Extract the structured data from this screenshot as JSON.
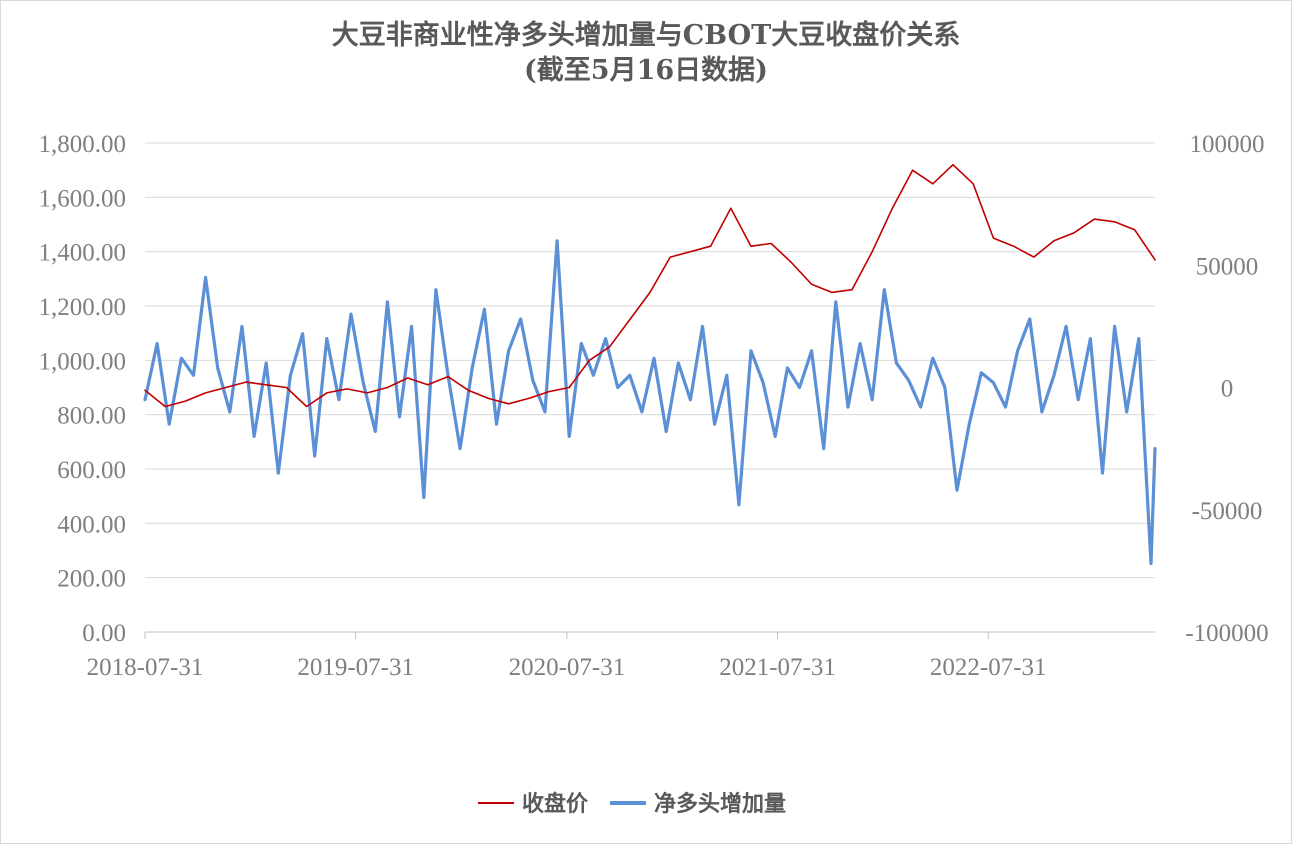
{
  "chart_data": {
    "type": "line",
    "title": "大豆非商业性净多头增加量与CBOT大豆收盘价关系",
    "subtitle": "(截至5月16日数据)",
    "x_tick_labels": [
      "2018-07-31",
      "2019-07-31",
      "2020-07-31",
      "2021-07-31",
      "2022-07-31"
    ],
    "x_range": [
      "2018-07-31",
      "2023-05-16"
    ],
    "y_left": {
      "range": [
        0,
        1800
      ],
      "ticks": [
        0,
        200,
        400,
        600,
        800,
        1000,
        1200,
        1400,
        1600,
        1800
      ],
      "tick_labels": [
        "0.00",
        "200.00",
        "400.00",
        "600.00",
        "800.00",
        "1,000.00",
        "1,200.00",
        "1,400.00",
        "1,600.00",
        "1,800.00"
      ]
    },
    "y_right": {
      "range": [
        -100000,
        100000
      ],
      "ticks": [
        -100000,
        -50000,
        0,
        50000,
        100000
      ],
      "tick_labels": [
        "-100000",
        "-50000",
        "0",
        "50000",
        "100000"
      ]
    },
    "grid": "horizontal",
    "legend_position": "bottom",
    "series": [
      {
        "name": "收盘价",
        "axis": "left",
        "color": "#c00000",
        "x": [
          "2018-07-31",
          "2018-09-04",
          "2018-10-09",
          "2018-11-13",
          "2018-12-18",
          "2019-01-22",
          "2019-02-26",
          "2019-04-02",
          "2019-05-07",
          "2019-06-11",
          "2019-07-16",
          "2019-08-20",
          "2019-09-24",
          "2019-10-29",
          "2019-12-03",
          "2020-01-07",
          "2020-02-11",
          "2020-03-17",
          "2020-04-21",
          "2020-05-26",
          "2020-06-30",
          "2020-08-04",
          "2020-09-08",
          "2020-10-13",
          "2020-11-17",
          "2020-12-22",
          "2021-01-26",
          "2021-03-02",
          "2021-04-06",
          "2021-05-11",
          "2021-06-15",
          "2021-07-20",
          "2021-08-24",
          "2021-09-28",
          "2021-11-02",
          "2021-12-07",
          "2022-01-11",
          "2022-02-15",
          "2022-03-22",
          "2022-04-26",
          "2022-05-31",
          "2022-07-05",
          "2022-08-09",
          "2022-09-13",
          "2022-10-18",
          "2022-11-22",
          "2022-12-27",
          "2023-01-31",
          "2023-03-07",
          "2023-04-11",
          "2023-05-16"
        ],
        "values": [
          890,
          830,
          850,
          880,
          900,
          920,
          910,
          900,
          830,
          880,
          895,
          880,
          900,
          935,
          910,
          940,
          890,
          860,
          840,
          860,
          885,
          900,
          1000,
          1050,
          1150,
          1250,
          1380,
          1400,
          1420,
          1560,
          1420,
          1430,
          1360,
          1280,
          1250,
          1260,
          1400,
          1560,
          1700,
          1650,
          1720,
          1650,
          1450,
          1420,
          1380,
          1440,
          1470,
          1520,
          1510,
          1480,
          1370
        ]
      },
      {
        "name": "净多头增加量",
        "axis": "right",
        "color": "#5b8fd6",
        "x": [
          "2018-07-31",
          "2018-08-21",
          "2018-09-11",
          "2018-10-02",
          "2018-10-23",
          "2018-11-13",
          "2018-12-04",
          "2018-12-25",
          "2019-01-15",
          "2019-02-05",
          "2019-02-26",
          "2019-03-19",
          "2019-04-09",
          "2019-04-30",
          "2019-05-21",
          "2019-06-11",
          "2019-07-02",
          "2019-07-23",
          "2019-08-13",
          "2019-09-03",
          "2019-09-24",
          "2019-10-15",
          "2019-11-05",
          "2019-11-26",
          "2019-12-17",
          "2020-01-07",
          "2020-01-28",
          "2020-02-18",
          "2020-03-10",
          "2020-03-31",
          "2020-04-21",
          "2020-05-12",
          "2020-06-02",
          "2020-06-23",
          "2020-07-14",
          "2020-08-04",
          "2020-08-25",
          "2020-09-15",
          "2020-10-06",
          "2020-10-27",
          "2020-11-17",
          "2020-12-08",
          "2020-12-29",
          "2021-01-19",
          "2021-02-09",
          "2021-03-02",
          "2021-03-23",
          "2021-04-13",
          "2021-05-04",
          "2021-05-25",
          "2021-06-15",
          "2021-07-06",
          "2021-07-27",
          "2021-08-17",
          "2021-09-07",
          "2021-09-28",
          "2021-10-19",
          "2021-11-09",
          "2021-11-30",
          "2021-12-21",
          "2022-01-11",
          "2022-02-01",
          "2022-02-22",
          "2022-03-15",
          "2022-04-05",
          "2022-04-26",
          "2022-05-17",
          "2022-06-07",
          "2022-06-28",
          "2022-07-19",
          "2022-08-09",
          "2022-08-30",
          "2022-09-20",
          "2022-10-11",
          "2022-11-01",
          "2022-11-22",
          "2022-12-13",
          "2023-01-03",
          "2023-01-24",
          "2023-02-14",
          "2023-03-07",
          "2023-03-28",
          "2023-04-18",
          "2023-05-09",
          "2023-05-16"
        ],
        "values": [
          -5000,
          18000,
          -15000,
          12000,
          5000,
          45000,
          8000,
          -10000,
          25000,
          -20000,
          10000,
          -35000,
          5000,
          22000,
          -28000,
          20000,
          -5000,
          30000,
          2000,
          -18000,
          35000,
          -12000,
          25000,
          -45000,
          40000,
          5000,
          -25000,
          8000,
          32000,
          -15000,
          15000,
          28000,
          3000,
          -10000,
          60000,
          -20000,
          18000,
          5000,
          20000,
          0,
          5000,
          -10000,
          12000,
          -18000,
          10000,
          -5000,
          25000,
          -15000,
          5000,
          -48000,
          15000,
          2000,
          -20000,
          8000,
          0,
          15000,
          -25000,
          35000,
          -8000,
          18000,
          -5000,
          40000,
          10000,
          3000,
          -8000,
          12000,
          0,
          -42000,
          -15000,
          6000,
          2000,
          -8000,
          15000,
          28000,
          -10000,
          5000,
          25000,
          -5000,
          20000,
          -35000,
          25000,
          -10000,
          20000,
          -72000,
          -25000
        ]
      }
    ],
    "legend": [
      "收盘价",
      "净多头增加量"
    ]
  }
}
